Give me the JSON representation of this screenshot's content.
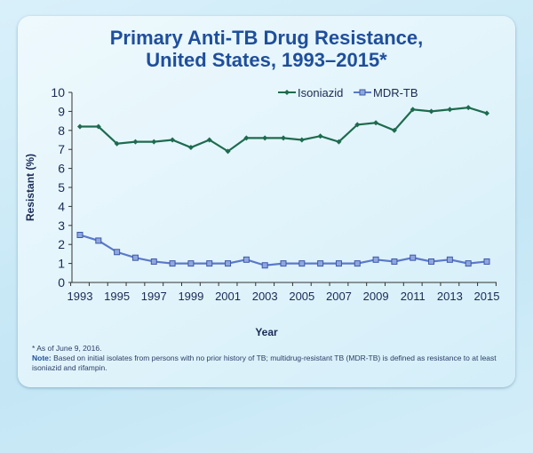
{
  "chart_data": {
    "type": "line",
    "title": "Primary Anti-TB Drug Resistance, United States, 1993–2015*",
    "title_lines": [
      "Primary Anti-TB Drug Resistance,",
      "United States, 1993–2015*"
    ],
    "xlabel": "Year",
    "ylabel": "Resistant (%)",
    "ylim": [
      0,
      10
    ],
    "xlim": [
      1993,
      2015
    ],
    "yticks": [
      0,
      1,
      2,
      3,
      4,
      5,
      6,
      7,
      8,
      9,
      10
    ],
    "xticks": [
      1993,
      1995,
      1997,
      1999,
      2001,
      2003,
      2005,
      2007,
      2009,
      2011,
      2013,
      2015
    ],
    "grid": false,
    "legend_position": "top-right",
    "x": [
      1993,
      1994,
      1995,
      1996,
      1997,
      1998,
      1999,
      2000,
      2001,
      2002,
      2003,
      2004,
      2005,
      2006,
      2007,
      2008,
      2009,
      2010,
      2011,
      2012,
      2013,
      2014,
      2015
    ],
    "series": [
      {
        "name": "Isoniazid",
        "color": "#1e6b4f",
        "marker": "diamond",
        "values": [
          8.2,
          8.2,
          7.3,
          7.4,
          7.4,
          7.5,
          7.1,
          7.5,
          6.9,
          7.6,
          7.6,
          7.6,
          7.5,
          7.7,
          7.4,
          8.3,
          8.4,
          8.0,
          9.1,
          9.0,
          9.1,
          9.2,
          8.9
        ]
      },
      {
        "name": "MDR-TB",
        "color": "#5b79c9",
        "marker": "square",
        "values": [
          2.5,
          2.2,
          1.6,
          1.3,
          1.1,
          1.0,
          1.0,
          1.0,
          1.0,
          1.2,
          0.9,
          1.0,
          1.0,
          1.0,
          1.0,
          1.0,
          1.2,
          1.1,
          1.3,
          1.1,
          1.2,
          1.0,
          1.1
        ]
      }
    ]
  },
  "footnote": "*  As of June 9, 2016.",
  "note_label": "Note:",
  "note_text": " Based on initial isolates from persons with no prior history of TB; multidrug-resistant TB (MDR-TB) is defined as resistance to at least isoniazid and rifampin."
}
